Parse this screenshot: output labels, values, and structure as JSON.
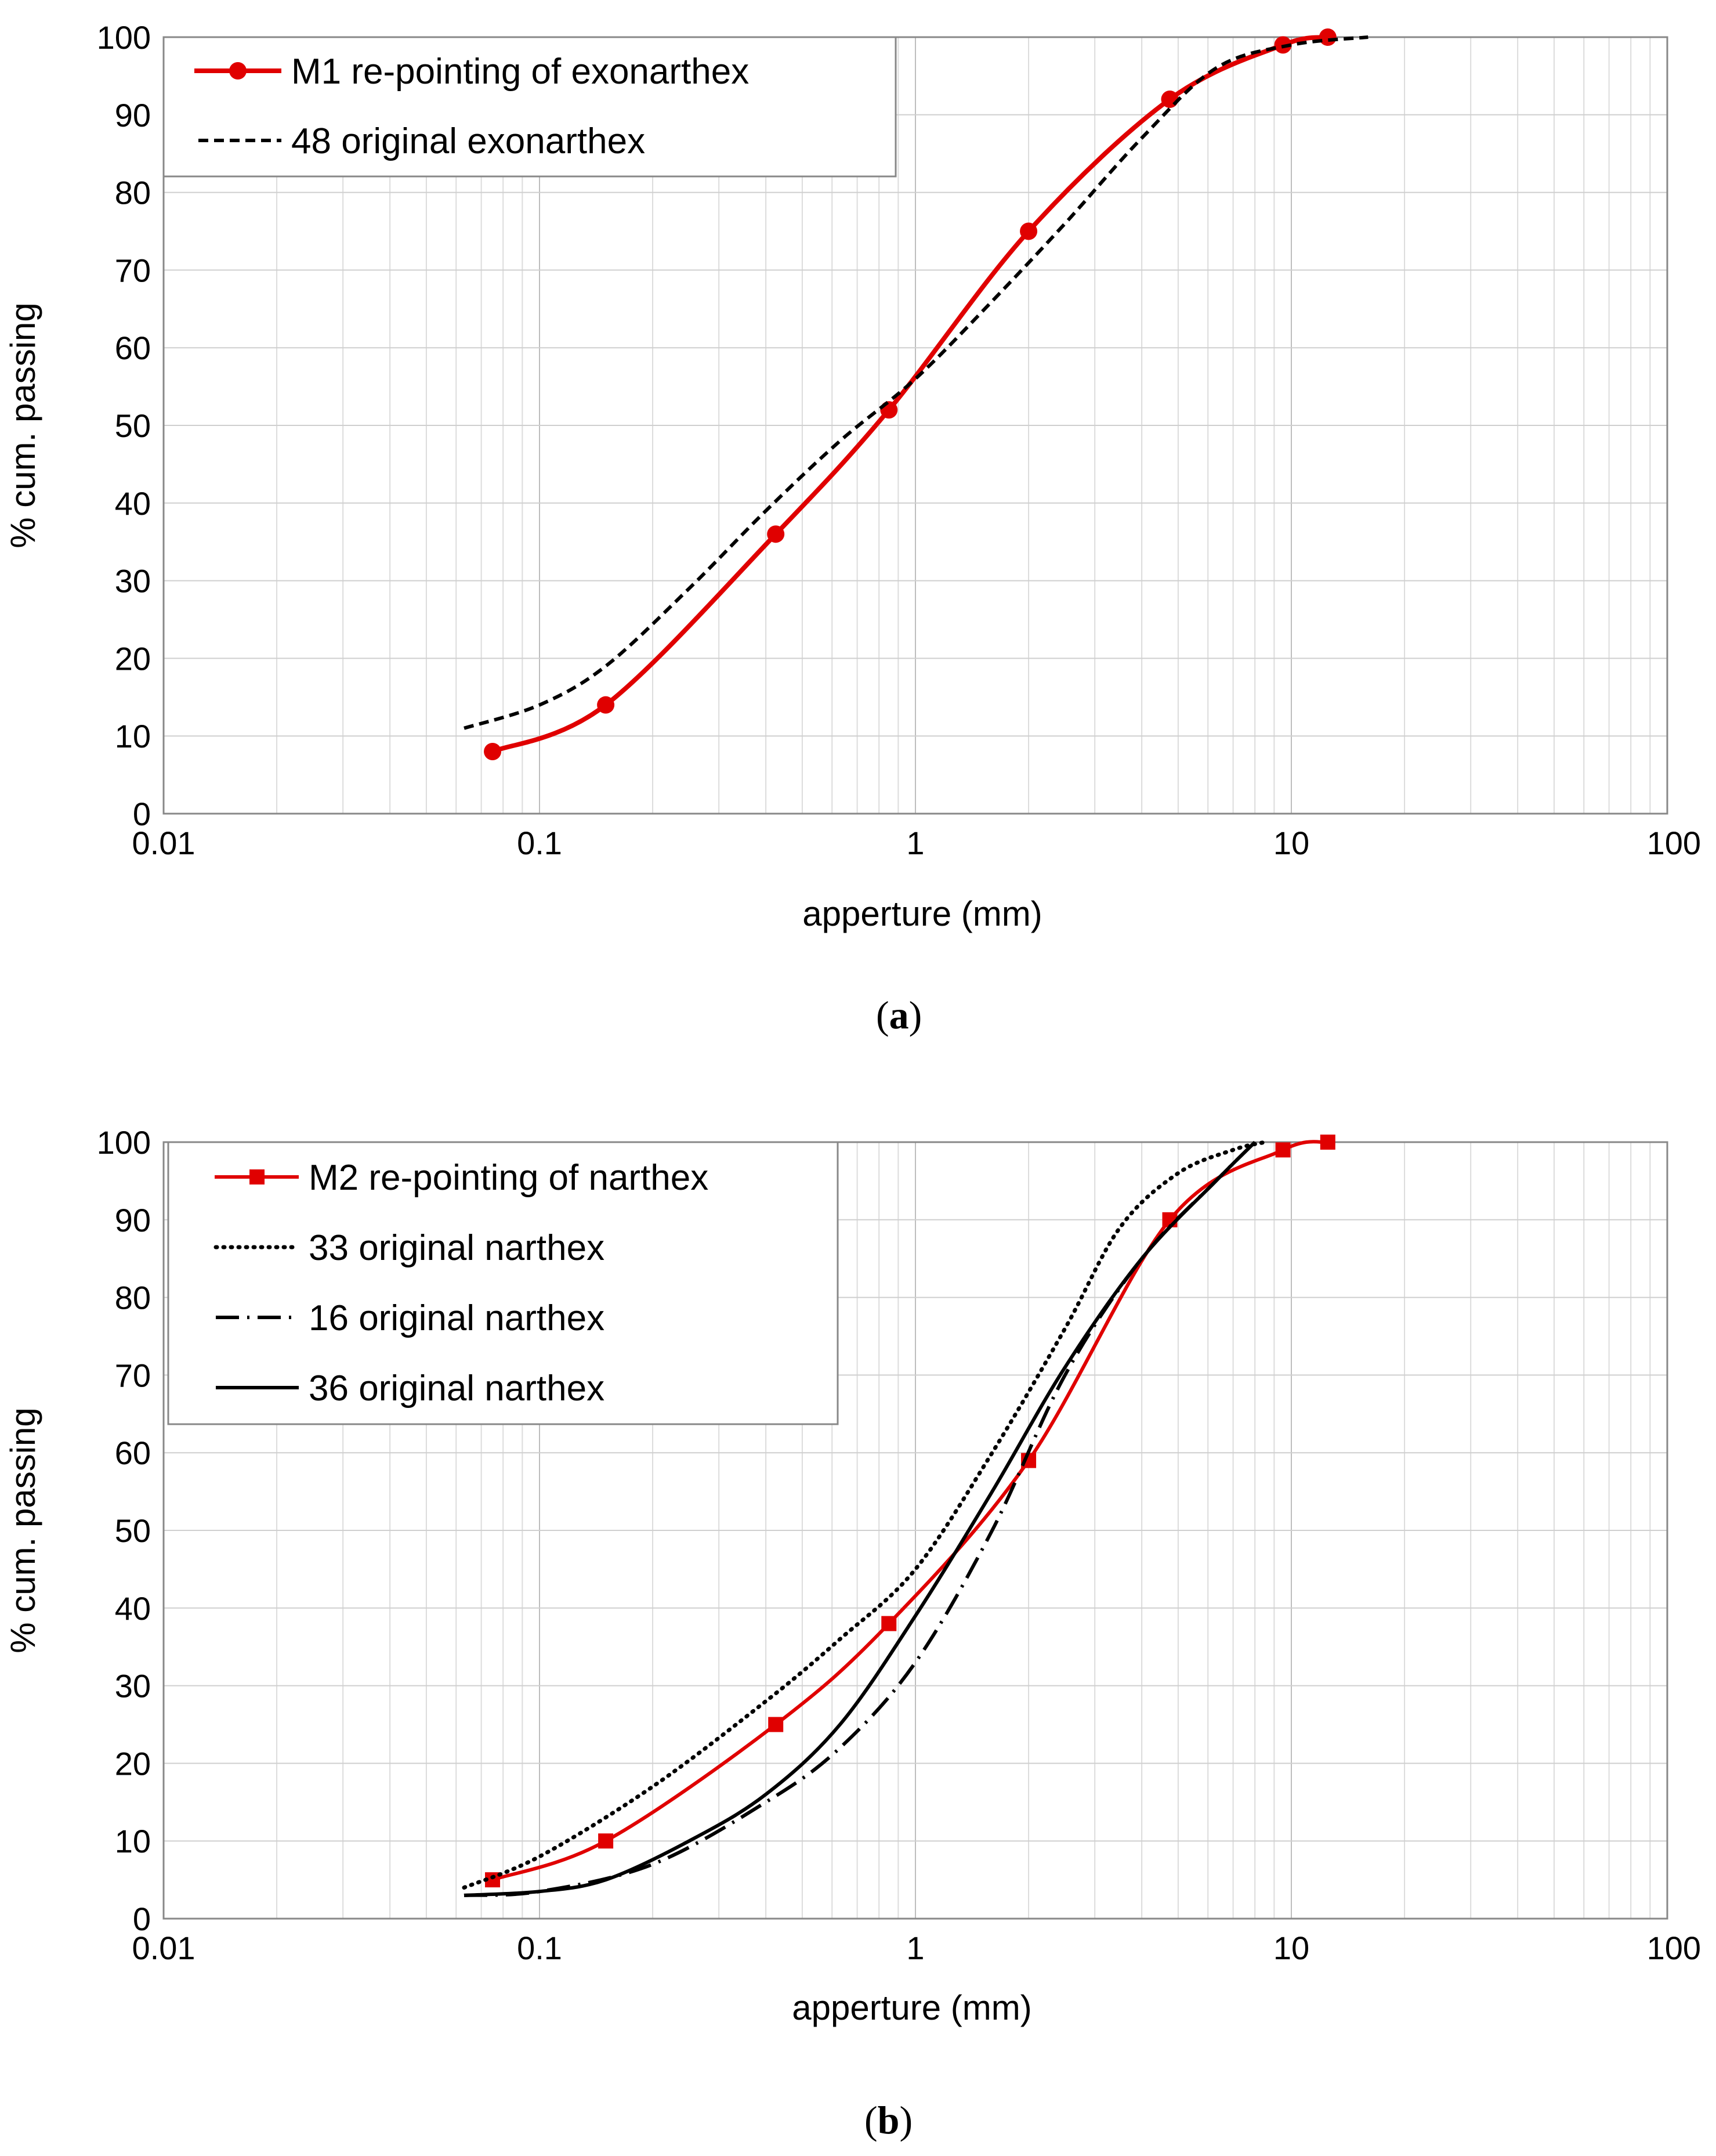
{
  "chart_data": [
    {
      "type": "line",
      "panel_label": "a",
      "title": "",
      "xlabel": "apperture (mm)",
      "ylabel": "% cum.  passing",
      "xscale": "log",
      "xlim": [
        0.01,
        100
      ],
      "ylim": [
        0,
        100
      ],
      "x_ticks": [
        "0.01",
        "0.1",
        "1",
        "10",
        "100"
      ],
      "y_ticks": [
        "0",
        "10",
        "20",
        "30",
        "40",
        "50",
        "60",
        "70",
        "80",
        "90",
        "100"
      ],
      "grid": true,
      "legend_position": "top-left",
      "series": [
        {
          "name": "M1 re-pointing of exonarthex",
          "color": "#e00000",
          "style": "solid",
          "marker": "circle",
          "x": [
            0.075,
            0.15,
            0.425,
            0.85,
            2,
            4.75,
            9.5,
            12.5
          ],
          "y": [
            8,
            14,
            36,
            52,
            75,
            92,
            99,
            100
          ]
        },
        {
          "name": "48 original exonarthex",
          "color": "#000000",
          "style": "dashed",
          "marker": "none",
          "x": [
            0.063,
            0.1,
            0.15,
            0.25,
            0.4,
            0.63,
            1,
            1.6,
            2.5,
            4,
            6.3,
            10,
            16
          ],
          "y": [
            11,
            14,
            19,
            29,
            39,
            48,
            56,
            66,
            76,
            87,
            96,
            99,
            100
          ]
        }
      ]
    },
    {
      "type": "line",
      "panel_label": "b",
      "title": "",
      "xlabel": "apperture (mm)",
      "ylabel": "% cum.  passing",
      "xscale": "log",
      "xlim": [
        0.01,
        100
      ],
      "ylim": [
        0,
        100
      ],
      "x_ticks": [
        "0.01",
        "0.1",
        "1",
        "10",
        "100"
      ],
      "y_ticks": [
        "0",
        "10",
        "20",
        "30",
        "40",
        "50",
        "60",
        "70",
        "80",
        "90",
        "100"
      ],
      "grid": true,
      "legend_position": "top-left",
      "series": [
        {
          "name": "M2 re-pointing of narthex",
          "color": "#e00000",
          "style": "solid",
          "marker": "square",
          "x": [
            0.075,
            0.15,
            0.425,
            0.85,
            2,
            4.75,
            9.5,
            12.5
          ],
          "y": [
            5,
            10,
            25,
            38,
            59,
            90,
            99,
            100
          ]
        },
        {
          "name": "33 original narthex",
          "color": "#000000",
          "style": "dotted",
          "marker": "none",
          "x": [
            0.063,
            0.1,
            0.2,
            0.4,
            0.63,
            1,
            1.6,
            2.5,
            3.5,
            5,
            7,
            8.5
          ],
          "y": [
            4,
            8,
            17,
            28,
            36,
            45,
            60,
            76,
            89,
            96,
            99,
            100
          ]
        },
        {
          "name": "16 original narthex",
          "color": "#000000",
          "style": "dashdot",
          "marker": "none",
          "x": [
            0.063,
            0.1,
            0.2,
            0.4,
            0.63,
            1,
            1.6,
            2.5,
            4,
            6.3,
            8
          ],
          "y": [
            3,
            3.5,
            7,
            15,
            22,
            33,
            50,
            70,
            85,
            95,
            100
          ]
        },
        {
          "name": "36 original narthex",
          "color": "#000000",
          "style": "solid",
          "marker": "none",
          "x": [
            0.063,
            0.1,
            0.15,
            0.25,
            0.4,
            0.63,
            1,
            1.6,
            2.5,
            4,
            6.3,
            8
          ],
          "y": [
            3,
            3.5,
            5,
            10,
            16,
            25,
            39,
            55,
            71,
            85,
            95,
            100
          ]
        }
      ]
    }
  ]
}
